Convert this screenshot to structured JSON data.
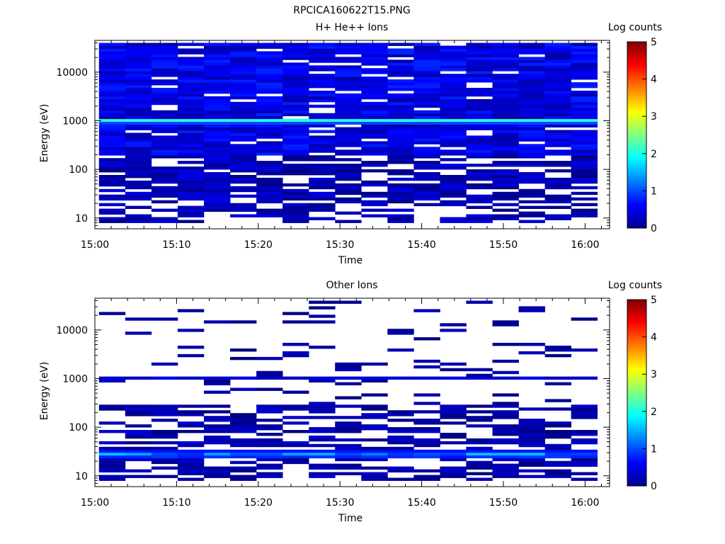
{
  "figure": {
    "title": "RPCICA160622T15.PNG"
  },
  "chart_data": [
    {
      "type": "heatmap",
      "title": "H+ He++ Ions",
      "xlabel": "Time",
      "ylabel": "Energy (eV)",
      "x_ticks": [
        "15:00",
        "15:10",
        "15:20",
        "15:30",
        "15:40",
        "15:50",
        "16:00"
      ],
      "x_range": [
        "15:00",
        "16:03"
      ],
      "y_scale": "log",
      "y_range": [
        6,
        45000
      ],
      "y_ticks": [
        "10",
        "100",
        "1000",
        "10000"
      ],
      "colorbar": {
        "label": "Log counts",
        "range": [
          0,
          5
        ],
        "ticks": [
          "0",
          "1",
          "2",
          "3",
          "4",
          "5"
        ]
      },
      "time_bins": 19,
      "description_of_values": {
        "band_center_eV": 1000,
        "band_peak_log_counts": 2.2,
        "background_above_200eV_log_counts": [
          0.2,
          0.8
        ],
        "below_200eV_log_counts": [
          0,
          0.5
        ]
      }
    },
    {
      "type": "heatmap",
      "title": "Other Ions",
      "xlabel": "Time",
      "ylabel": "Energy (eV)",
      "x_ticks": [
        "15:00",
        "15:10",
        "15:20",
        "15:30",
        "15:40",
        "15:50",
        "16:00"
      ],
      "x_range": [
        "15:00",
        "16:03"
      ],
      "y_scale": "log",
      "y_range": [
        6,
        45000
      ],
      "y_ticks": [
        "10",
        "100",
        "1000",
        "10000"
      ],
      "colorbar": {
        "label": "Log counts",
        "range": [
          0,
          5
        ],
        "ticks": [
          "0",
          "1",
          "2",
          "3",
          "4",
          "5"
        ]
      },
      "time_bins": 19,
      "description_of_values": {
        "band_center_eV": 28,
        "band_peak_log_counts": 1.6,
        "secondary_band_eV": 1000,
        "secondary_band_log_counts": 0.5,
        "background_log_counts": [
          0,
          0.4
        ]
      }
    }
  ]
}
